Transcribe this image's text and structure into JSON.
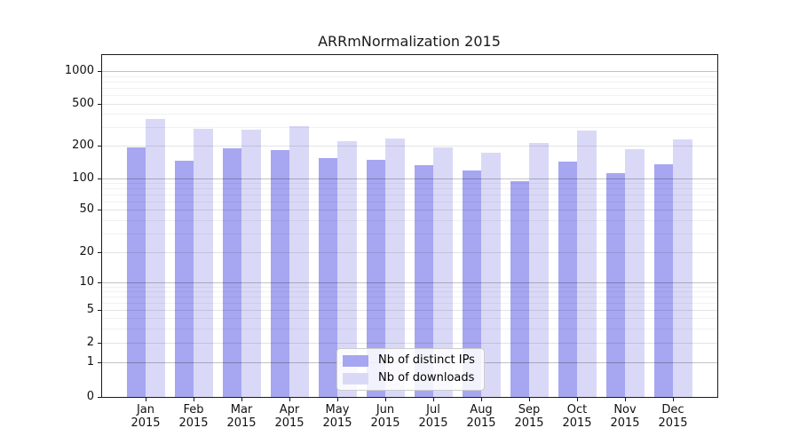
{
  "figure": {
    "title": "ARRmNormalization 2015"
  },
  "chart_data": {
    "type": "bar",
    "title": "ARRmNormalization 2015",
    "categories": [
      "Jan 2015",
      "Feb 2015",
      "Mar 2015",
      "Apr 2015",
      "May 2015",
      "Jun 2015",
      "Jul 2015",
      "Aug 2015",
      "Sep 2015",
      "Oct 2015",
      "Nov 2015",
      "Dec 2015"
    ],
    "x_tick_months": [
      "Jan",
      "Feb",
      "Mar",
      "Apr",
      "May",
      "Jun",
      "Jul",
      "Aug",
      "Sep",
      "Oct",
      "Nov",
      "Dec"
    ],
    "x_tick_year": "2015",
    "series": [
      {
        "name": "Nb of distinct IPs",
        "color": "#a6a6f1",
        "values": [
          193,
          145,
          190,
          183,
          155,
          148,
          133,
          118,
          95,
          143,
          111,
          136
        ]
      },
      {
        "name": "Nb of downloads",
        "color": "#d9d9f7",
        "values": [
          356,
          289,
          287,
          308,
          219,
          234,
          193,
          171,
          212,
          278,
          185,
          228
        ]
      }
    ],
    "xlabel": "",
    "ylabel": "",
    "yscale": "log-with-zero-floor (symlog-like)",
    "yticks": [
      0,
      1,
      2,
      5,
      10,
      20,
      50,
      100,
      200,
      500,
      1000
    ],
    "ylim": [
      0,
      1450
    ],
    "grid": "horizontal major and minor gridlines, drawn over bars",
    "legend_position": "lower center inside plot"
  },
  "legend": {
    "entries": [
      {
        "label": "Nb of distinct IPs",
        "color": "#a6a6f1"
      },
      {
        "label": "Nb of downloads",
        "color": "#d9d9f7"
      }
    ]
  }
}
